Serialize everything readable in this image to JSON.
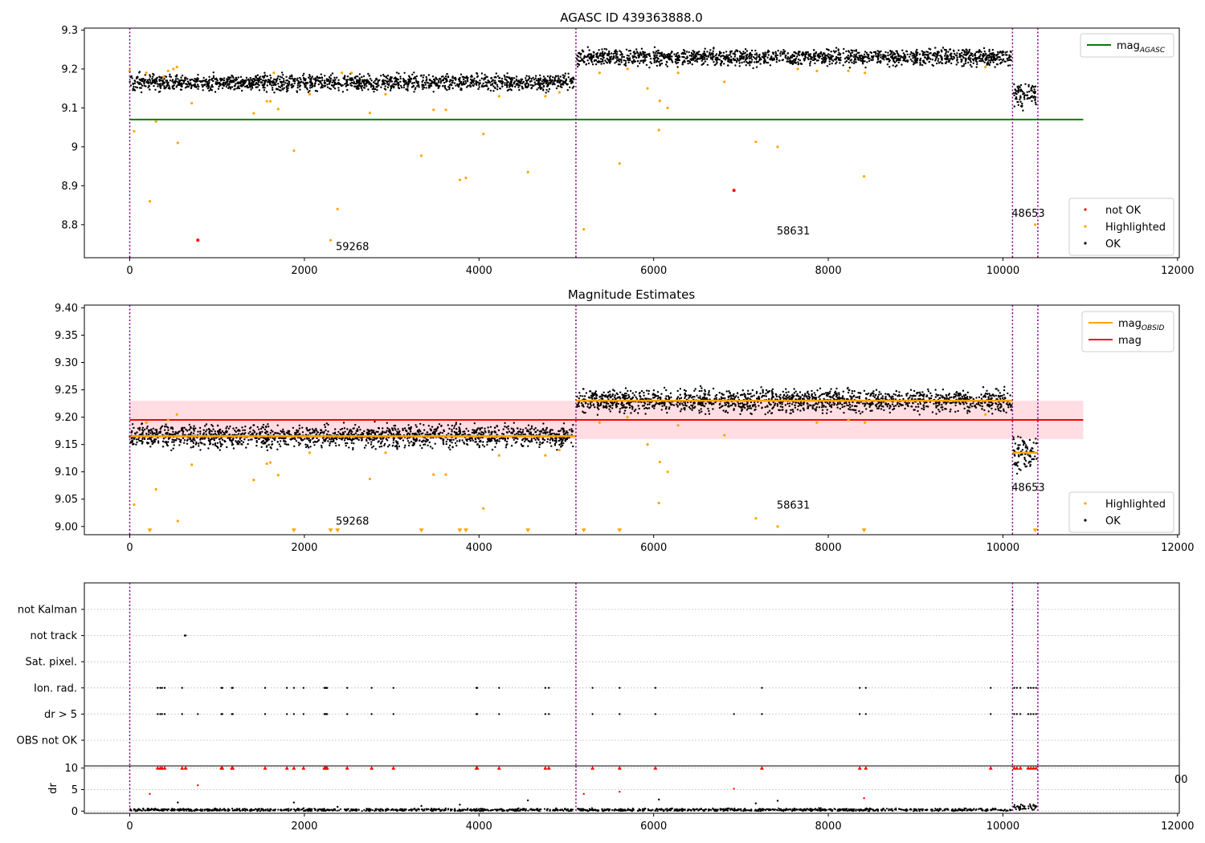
{
  "chart_data": [
    {
      "type": "scatter",
      "title": "AGASC ID 439363888.0",
      "xlim": [
        -520,
        12020
      ],
      "ylim": [
        8.715,
        9.305
      ],
      "xticks": [
        0,
        2000,
        4000,
        6000,
        8000,
        10000,
        12000
      ],
      "yticks": [
        8.8,
        8.9,
        9.0,
        9.1,
        9.2,
        9.3
      ],
      "obs_boundaries": [
        0,
        5110,
        10110,
        10400
      ],
      "obs_labels": [
        {
          "text": "59268",
          "x": 2550,
          "y": 8.735
        },
        {
          "text": "58631",
          "x": 7600,
          "y": 8.775
        },
        {
          "text": "48653",
          "x": 10290,
          "y": 8.82
        }
      ],
      "reference_lines": [
        {
          "name": "magAGASC",
          "y": 9.07,
          "x_range": [
            0,
            10920
          ],
          "color": "#008000"
        }
      ],
      "series": [
        {
          "name": "not OK",
          "color": "#ff0000",
          "points": [
            [
              780,
              8.76
            ],
            [
              6920,
              8.888
            ]
          ]
        },
        {
          "name": "Highlighted",
          "color": "#ffa500",
          "points": [
            [
              0,
              9.195
            ],
            [
              50,
              9.04
            ],
            [
              190,
              9.19
            ],
            [
              230,
              8.86
            ],
            [
              300,
              9.065
            ],
            [
              390,
              9.18
            ],
            [
              440,
              9.195
            ],
            [
              500,
              9.2
            ],
            [
              540,
              9.205
            ],
            [
              550,
              9.01
            ],
            [
              710,
              9.112
            ],
            [
              1420,
              9.086
            ],
            [
              1570,
              9.117
            ],
            [
              1610,
              9.117
            ],
            [
              1650,
              9.19
            ],
            [
              1700,
              9.097
            ],
            [
              1880,
              8.99
            ],
            [
              2060,
              9.135
            ],
            [
              2300,
              8.76
            ],
            [
              2380,
              8.84
            ],
            [
              2430,
              9.19
            ],
            [
              2540,
              9.19
            ],
            [
              2750,
              9.087
            ],
            [
              2930,
              9.135
            ],
            [
              3340,
              8.977
            ],
            [
              3480,
              9.095
            ],
            [
              3620,
              9.095
            ],
            [
              3780,
              8.915
            ],
            [
              3850,
              8.92
            ],
            [
              4050,
              9.033
            ],
            [
              4230,
              9.13
            ],
            [
              4560,
              8.935
            ],
            [
              4760,
              9.13
            ],
            [
              4920,
              9.14
            ],
            [
              5200,
              8.788
            ],
            [
              5380,
              9.19
            ],
            [
              5610,
              8.957
            ],
            [
              5700,
              9.2
            ],
            [
              5930,
              9.15
            ],
            [
              6060,
              9.043
            ],
            [
              6070,
              9.118
            ],
            [
              6160,
              9.1
            ],
            [
              6280,
              9.19
            ],
            [
              6810,
              9.167
            ],
            [
              7170,
              9.013
            ],
            [
              7420,
              9.0
            ],
            [
              7650,
              9.2
            ],
            [
              7870,
              9.195
            ],
            [
              8230,
              9.195
            ],
            [
              8410,
              8.924
            ],
            [
              8420,
              9.19
            ],
            [
              9800,
              9.205
            ],
            [
              10370,
              8.8
            ]
          ]
        },
        {
          "name": "OK",
          "color": "#000000",
          "segments": [
            {
              "x_range": [
                0,
                5090
              ],
              "y_mean": 9.165,
              "y_spread": 0.018
            },
            {
              "x_range": [
                5120,
                10100
              ],
              "y_mean": 9.23,
              "y_spread": 0.018
            },
            {
              "x_range": [
                10120,
                10390
              ],
              "y_mean": 9.135,
              "y_spread": 0.03
            }
          ]
        }
      ],
      "legends": [
        {
          "position": "upper right",
          "entries": [
            {
              "label": "mag",
              "sub": "AGASC",
              "kind": "line",
              "color": "#008000"
            }
          ]
        },
        {
          "position": "lower right",
          "entries": [
            {
              "label": "not OK",
              "kind": "dot",
              "color": "#ff0000"
            },
            {
              "label": "Highlighted",
              "kind": "dot",
              "color": "#ffa500"
            },
            {
              "label": "OK",
              "kind": "dot",
              "color": "#000000"
            }
          ]
        }
      ]
    },
    {
      "type": "scatter",
      "title": "Magnitude Estimates",
      "xlim": [
        -520,
        12020
      ],
      "ylim": [
        8.985,
        9.405
      ],
      "xticks": [
        0,
        2000,
        4000,
        6000,
        8000,
        10000,
        12000
      ],
      "yticks": [
        9.0,
        9.05,
        9.1,
        9.15,
        9.2,
        9.25,
        9.3,
        9.35,
        9.4
      ],
      "ytick_labels": [
        "9.00",
        "9.05",
        "9.10",
        "9.15",
        "9.20",
        "9.25",
        "9.30",
        "9.35",
        "9.40"
      ],
      "obs_boundaries": [
        0,
        5110,
        10110,
        10400
      ],
      "obs_labels": [
        {
          "text": "59268",
          "x": 2550,
          "y": 9.003
        },
        {
          "text": "58631",
          "x": 7600,
          "y": 9.033
        },
        {
          "text": "48653",
          "x": 10290,
          "y": 9.065
        }
      ],
      "mag": {
        "name": "mag",
        "value": 9.195,
        "band": [
          9.16,
          9.23
        ],
        "x_range": [
          0,
          10920
        ],
        "color": "#ff0000",
        "band_color": "#ffdde3"
      },
      "mag_obsid": {
        "name": "magOBSID",
        "color": "#ffa500",
        "segments": [
          {
            "x_range": [
              0,
              5110
            ],
            "y": 9.165
          },
          {
            "x_range": [
              5110,
              10110
            ],
            "y": 9.23
          },
          {
            "x_range": [
              10110,
              10400
            ],
            "y": 9.135
          }
        ]
      },
      "series": [
        {
          "name": "Highlighted",
          "color": "#ffa500",
          "points": [
            [
              50,
              9.04
            ],
            [
              190,
              9.19
            ],
            [
              300,
              9.068
            ],
            [
              440,
              9.195
            ],
            [
              540,
              9.205
            ],
            [
              550,
              9.01
            ],
            [
              710,
              9.113
            ],
            [
              1420,
              9.085
            ],
            [
              1570,
              9.115
            ],
            [
              1610,
              9.117
            ],
            [
              1700,
              9.094
            ],
            [
              2060,
              9.135
            ],
            [
              2750,
              9.087
            ],
            [
              2930,
              9.135
            ],
            [
              3480,
              9.095
            ],
            [
              3620,
              9.095
            ],
            [
              4050,
              9.033
            ],
            [
              4230,
              9.13
            ],
            [
              4760,
              9.13
            ],
            [
              4920,
              9.14
            ],
            [
              5380,
              9.19
            ],
            [
              5700,
              9.2
            ],
            [
              5930,
              9.15
            ],
            [
              6060,
              9.043
            ],
            [
              6070,
              9.118
            ],
            [
              6160,
              9.1
            ],
            [
              6280,
              9.185
            ],
            [
              6810,
              9.167
            ],
            [
              7170,
              9.015
            ],
            [
              7420,
              9.0
            ],
            [
              7870,
              9.19
            ],
            [
              8230,
              9.195
            ],
            [
              8420,
              9.19
            ],
            [
              9800,
              9.205
            ]
          ]
        },
        {
          "name": "Highlighted (below axis)",
          "color": "#ffa500",
          "marker": "triangle-down",
          "y": 8.992,
          "x": [
            230,
            1880,
            2300,
            2380,
            3340,
            3780,
            3850,
            4560,
            5200,
            5610,
            8410,
            10370
          ]
        },
        {
          "name": "OK",
          "color": "#000000",
          "segments": [
            {
              "x_range": [
                0,
                5090
              ],
              "y_mean": 9.165,
              "y_spread": 0.018
            },
            {
              "x_range": [
                5120,
                10100
              ],
              "y_mean": 9.23,
              "y_spread": 0.018
            },
            {
              "x_range": [
                10120,
                10390
              ],
              "y_mean": 9.135,
              "y_spread": 0.03
            }
          ]
        }
      ],
      "legends": [
        {
          "position": "upper right",
          "entries": [
            {
              "label": "mag",
              "sub": "OBSID",
              "kind": "line",
              "color": "#ffa500"
            },
            {
              "label": "mag",
              "kind": "line",
              "color": "#ff0000"
            }
          ]
        },
        {
          "position": "lower right",
          "entries": [
            {
              "label": "Highlighted",
              "kind": "dot",
              "color": "#ffa500"
            },
            {
              "label": "OK",
              "kind": "dot",
              "color": "#000000"
            }
          ]
        }
      ]
    },
    {
      "type": "scatter",
      "title": "",
      "xlim": [
        -520,
        12020
      ],
      "categories": [
        "not Kalman",
        "not track",
        "Sat. pixel.",
        "Ion. rad.",
        "dr > 5",
        "OBS not OK"
      ],
      "obs_boundaries": [
        0,
        5110,
        10110,
        10400
      ],
      "flags": {
        "not Kalman": [
          10110
        ],
        "not track": [
          630,
          640
        ],
        "Sat. pixel.": [],
        "Ion. rad.": [
          320,
          350,
          370,
          400,
          600,
          1050,
          1060,
          1170,
          1180,
          1550,
          1800,
          1880,
          1990,
          2230,
          2240,
          2250,
          2260,
          2490,
          2770,
          3020,
          3970,
          3980,
          4230,
          4760,
          4800,
          5300,
          5610,
          6020,
          7240,
          8360,
          8430,
          9860,
          10130,
          10160,
          10200,
          10290,
          10320,
          10350,
          10380
        ],
        "dr > 5": [
          320,
          350,
          370,
          400,
          600,
          780,
          1050,
          1060,
          1170,
          1180,
          1550,
          1800,
          1880,
          1990,
          2230,
          2240,
          2250,
          2260,
          2490,
          2770,
          3020,
          3970,
          3980,
          4230,
          4760,
          4800,
          5300,
          5610,
          6020,
          6920,
          7240,
          8360,
          8430,
          9860,
          10130,
          10160,
          10200,
          10290,
          10320,
          10350,
          10380
        ],
        "OBS not OK": []
      }
    },
    {
      "type": "scatter",
      "title": "",
      "ylabel": "dr",
      "xlim": [
        -520,
        12020
      ],
      "ylim": [
        -0.5,
        10.5
      ],
      "xticks": [
        0,
        2000,
        4000,
        6000,
        8000,
        10000,
        12000
      ],
      "yticks": [
        0,
        5,
        10
      ],
      "obs_boundaries": [
        0,
        5110,
        10110,
        10400
      ],
      "dr_clipped_at_10": [
        320,
        350,
        370,
        400,
        600,
        640,
        1050,
        1060,
        1170,
        1180,
        1550,
        1800,
        1880,
        1990,
        2230,
        2240,
        2250,
        2260,
        2490,
        2770,
        3020,
        3970,
        3980,
        4230,
        4760,
        4800,
        5300,
        5610,
        6020,
        7240,
        8360,
        8430,
        9860,
        10130,
        10160,
        10200,
        10290,
        10320,
        10350,
        10380
      ],
      "dr_red_points": [
        [
          230,
          4.0
        ],
        [
          780,
          6.0
        ],
        [
          5200,
          4.0
        ],
        [
          5610,
          4.5
        ],
        [
          6920,
          5.2
        ],
        [
          8410,
          3.0
        ]
      ],
      "dr_black_points": [
        [
          550,
          2.0
        ],
        [
          1880,
          2.0
        ],
        [
          2380,
          1.0
        ],
        [
          3340,
          1.2
        ],
        [
          3780,
          1.5
        ],
        [
          4560,
          2.5
        ],
        [
          6060,
          2.7
        ],
        [
          7170,
          1.8
        ],
        [
          7420,
          2.4
        ],
        [
          10370,
          1.2
        ]
      ],
      "dr_baseline": {
        "mean": 0.3,
        "spread": 0.3
      }
    }
  ],
  "clipped_tick_label": "00"
}
